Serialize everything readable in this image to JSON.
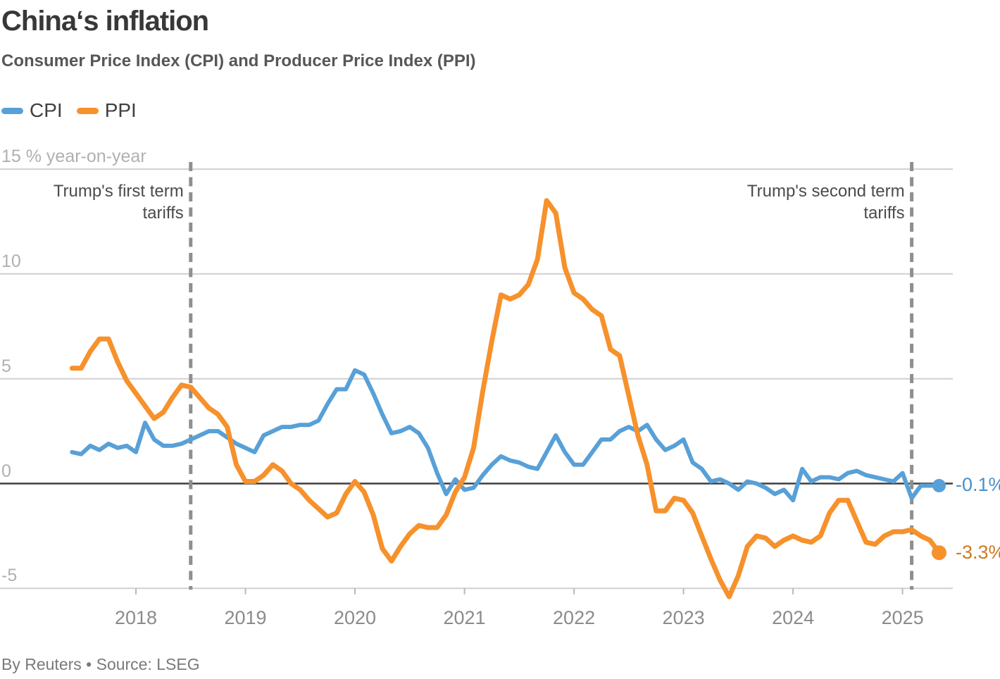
{
  "header": {
    "title": "China‘s inflation",
    "subtitle": "Consumer Price Index (CPI) and Producer Price Index (PPI)"
  },
  "footer": {
    "credit": "By Reuters • Source: LSEG"
  },
  "chart_data": {
    "type": "line",
    "title": "China‘s inflation",
    "subtitle": "Consumer Price Index (CPI) and Producer Price Index (PPI)",
    "unit": "% year-on-year",
    "start_month": "2017-06",
    "end_month": "2025-05",
    "frequency": "monthly",
    "grid": "horizontal",
    "legend_position": "top-left",
    "y_axis": {
      "range_shown": [
        -6.5,
        15
      ],
      "ticks": [
        {
          "value": 15,
          "label": "15 % year-on-year"
        },
        {
          "value": 10,
          "label": "10"
        },
        {
          "value": 5,
          "label": "5"
        },
        {
          "value": 0,
          "label": "0"
        },
        {
          "value": -5,
          "label": "-5"
        }
      ]
    },
    "x_axis": {
      "ticks": [
        {
          "month": "2018-01",
          "label": "2018"
        },
        {
          "month": "2019-01",
          "label": "2019"
        },
        {
          "month": "2020-01",
          "label": "2020"
        },
        {
          "month": "2021-01",
          "label": "2021"
        },
        {
          "month": "2022-01",
          "label": "2022"
        },
        {
          "month": "2023-01",
          "label": "2023"
        },
        {
          "month": "2024-01",
          "label": "2024"
        },
        {
          "month": "2025-01",
          "label": "2025"
        }
      ]
    },
    "annotations": [
      {
        "label": "Trump's first term tariffs",
        "month": "2018-07"
      },
      {
        "label": "Trump's second term tariffs",
        "month": "2025-02"
      }
    ],
    "series": [
      {
        "name": "CPI",
        "color": "#58a0d7",
        "label_color": "#4a90c9",
        "end_label": "-0.1%",
        "values": [
          1.5,
          1.4,
          1.8,
          1.6,
          1.9,
          1.7,
          1.8,
          1.5,
          2.9,
          2.1,
          1.8,
          1.8,
          1.9,
          2.1,
          2.3,
          2.5,
          2.5,
          2.2,
          1.9,
          1.7,
          1.5,
          2.3,
          2.5,
          2.7,
          2.7,
          2.8,
          2.8,
          3.0,
          3.8,
          4.5,
          4.5,
          5.4,
          5.2,
          4.3,
          3.3,
          2.4,
          2.5,
          2.7,
          2.4,
          1.7,
          0.5,
          -0.5,
          0.2,
          -0.3,
          -0.2,
          0.4,
          0.9,
          1.3,
          1.1,
          1.0,
          0.8,
          0.7,
          1.5,
          2.3,
          1.5,
          0.9,
          0.9,
          1.5,
          2.1,
          2.1,
          2.5,
          2.7,
          2.5,
          2.8,
          2.1,
          1.6,
          1.8,
          2.1,
          1.0,
          0.7,
          0.1,
          0.2,
          0.0,
          -0.3,
          0.1,
          0.0,
          -0.2,
          -0.5,
          -0.3,
          -0.8,
          0.7,
          0.1,
          0.3,
          0.3,
          0.2,
          0.5,
          0.6,
          0.4,
          0.3,
          0.2,
          0.1,
          0.5,
          -0.7,
          -0.1,
          -0.1,
          -0.1
        ]
      },
      {
        "name": "PPI",
        "color": "#f6912c",
        "label_color": "#cf7a1f",
        "end_label": "-3.3%",
        "values": [
          5.5,
          5.5,
          6.3,
          6.9,
          6.9,
          5.8,
          4.9,
          4.3,
          3.7,
          3.1,
          3.4,
          4.1,
          4.7,
          4.6,
          4.1,
          3.6,
          3.3,
          2.7,
          0.9,
          0.1,
          0.1,
          0.4,
          0.9,
          0.6,
          0.0,
          -0.3,
          -0.8,
          -1.2,
          -1.6,
          -1.4,
          -0.5,
          0.1,
          -0.4,
          -1.5,
          -3.1,
          -3.7,
          -3.0,
          -2.4,
          -2.0,
          -2.1,
          -2.1,
          -1.5,
          -0.4,
          0.3,
          1.7,
          4.4,
          6.8,
          9.0,
          8.8,
          9.0,
          9.5,
          10.7,
          13.5,
          12.9,
          10.3,
          9.1,
          8.8,
          8.3,
          8.0,
          6.4,
          6.1,
          4.2,
          2.3,
          0.9,
          -1.3,
          -1.3,
          -0.7,
          -0.8,
          -1.4,
          -2.5,
          -3.6,
          -4.6,
          -5.4,
          -4.4,
          -3.0,
          -2.5,
          -2.6,
          -3.0,
          -2.7,
          -2.5,
          -2.7,
          -2.8,
          -2.5,
          -1.4,
          -0.8,
          -0.8,
          -1.8,
          -2.8,
          -2.9,
          -2.5,
          -2.3,
          -2.3,
          -2.2,
          -2.5,
          -2.7,
          -3.3
        ]
      }
    ]
  }
}
